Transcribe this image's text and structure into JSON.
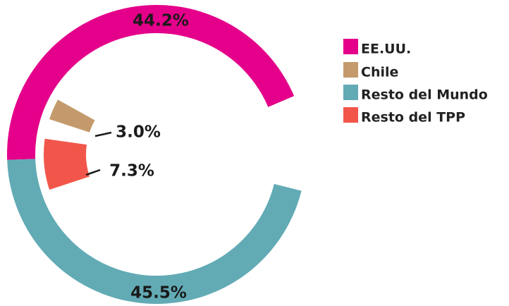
{
  "chart_data": {
    "type": "radial-donut",
    "categories": [
      "EE.UU.",
      "Chile",
      "Resto del Mundo",
      "Resto del TPP"
    ],
    "values": [
      44.2,
      3.0,
      45.5,
      7.3
    ],
    "value_labels": [
      "44.2%",
      "3.0%",
      "45.5%",
      "7.3%"
    ],
    "colors": [
      "#e4008a",
      "#c49a6c",
      "#62abb5",
      "#f2564a"
    ],
    "legend": "right"
  }
}
